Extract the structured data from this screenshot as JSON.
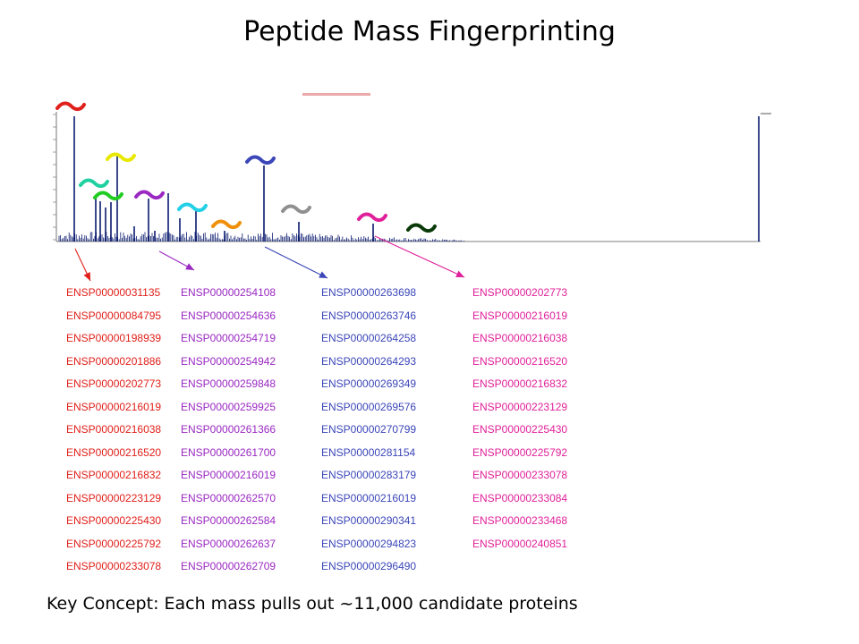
{
  "title": "Peptide Mass Fingerprinting",
  "key_concept": "Key Concept: Each mass pulls out ~11,000 candidate proteins",
  "colors": {
    "group1": "#e0201a",
    "group2": "#9a28c2",
    "group3": "#3b46b8",
    "group4": "#e0209a",
    "spectrum": "#0a1a6e"
  },
  "groups": [
    {
      "ids": [
        "ENSP00000031135",
        "ENSP00000084795",
        "ENSP00000198939",
        "ENSP00000201886",
        "ENSP00000202773",
        "ENSP00000216019",
        "ENSP00000216038",
        "ENSP00000216520",
        "ENSP00000216832",
        "ENSP00000223129",
        "ENSP00000225430",
        "ENSP00000225792",
        "ENSP00000233078"
      ]
    },
    {
      "ids": [
        "ENSP00000254108",
        "ENSP00000254636",
        "ENSP00000254719",
        "ENSP00000254942",
        "ENSP00000259848",
        "ENSP00000259925",
        "ENSP00000261366",
        "ENSP00000261700",
        "ENSP00000216019",
        "ENSP00000262570",
        "ENSP00000262584",
        "ENSP00000262637",
        "ENSP00000262709"
      ]
    },
    {
      "ids": [
        "ENSP00000263698",
        "ENSP00000263746",
        "ENSP00000264258",
        "ENSP00000264293",
        "ENSP00000269349",
        "ENSP00000269576",
        "ENSP00000270799",
        "ENSP00000281154",
        "ENSP00000283179",
        "ENSP00000216019",
        "ENSP00000290341",
        "ENSP00000294823",
        "ENSP00000296490"
      ]
    },
    {
      "ids": [
        "ENSP00000202773",
        "ENSP00000216019",
        "ENSP00000216038",
        "ENSP00000216520",
        "ENSP00000216832",
        "ENSP00000223129",
        "ENSP00000225430",
        "ENSP00000225792",
        "ENSP00000233078",
        "ENSP00000233084",
        "ENSP00000233468",
        "ENSP00000240851"
      ]
    }
  ],
  "peak_markers": [
    {
      "color": "#e0201a"
    },
    {
      "color": "#1fd0a0"
    },
    {
      "color": "#22cc22"
    },
    {
      "color": "#e8e800"
    },
    {
      "color": "#9a28c2"
    },
    {
      "color": "#22d0e8"
    },
    {
      "color": "#f0900a"
    },
    {
      "color": "#3b46b8"
    },
    {
      "color": "#909090"
    },
    {
      "color": "#e0209a"
    },
    {
      "color": "#0a3a0a"
    }
  ]
}
